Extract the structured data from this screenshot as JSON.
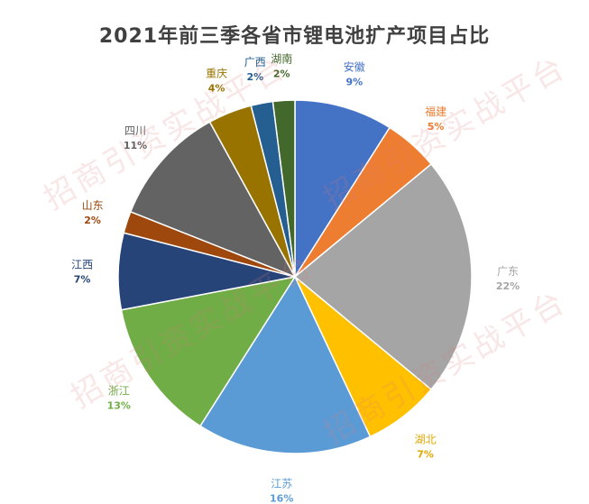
{
  "chart_data": {
    "type": "pie",
    "title": "2021年前三季各省市锂电池扩产项目占比",
    "slices": [
      {
        "name": "安徽",
        "value": 9,
        "label": "9%",
        "color": "#4472C4",
        "text_color": "#4472C4"
      },
      {
        "name": "福建",
        "value": 5,
        "label": "5%",
        "color": "#ED7D31",
        "text_color": "#ED7D31"
      },
      {
        "name": "广东",
        "value": 22,
        "label": "22%",
        "color": "#A5A5A5",
        "text_color": "#A5A5A5"
      },
      {
        "name": "湖北",
        "value": 7,
        "label": "7%",
        "color": "#FFC000",
        "text_color": "#E0A800"
      },
      {
        "name": "江苏",
        "value": 16,
        "label": "16%",
        "color": "#5B9BD5",
        "text_color": "#5B9BD5"
      },
      {
        "name": "浙江",
        "value": 13,
        "label": "13%",
        "color": "#70AD47",
        "text_color": "#70AD47"
      },
      {
        "name": "江西",
        "value": 7,
        "label": "7%",
        "color": "#264478",
        "text_color": "#264478"
      },
      {
        "name": "山东",
        "value": 2,
        "label": "2%",
        "color": "#9E480E",
        "text_color": "#9E480E"
      },
      {
        "name": "四川",
        "value": 11,
        "label": "11%",
        "color": "#636363",
        "text_color": "#636363"
      },
      {
        "name": "重庆",
        "value": 4,
        "label": "4%",
        "color": "#997300",
        "text_color": "#997300"
      },
      {
        "name": "广西",
        "value": 2,
        "label": "2%",
        "color": "#255E91",
        "text_color": "#255E91"
      },
      {
        "name": "湖南",
        "value": 2,
        "label": "2%",
        "color": "#43682B",
        "text_color": "#43682B"
      }
    ],
    "legend": "none"
  },
  "watermark": "招商引资实战平台"
}
